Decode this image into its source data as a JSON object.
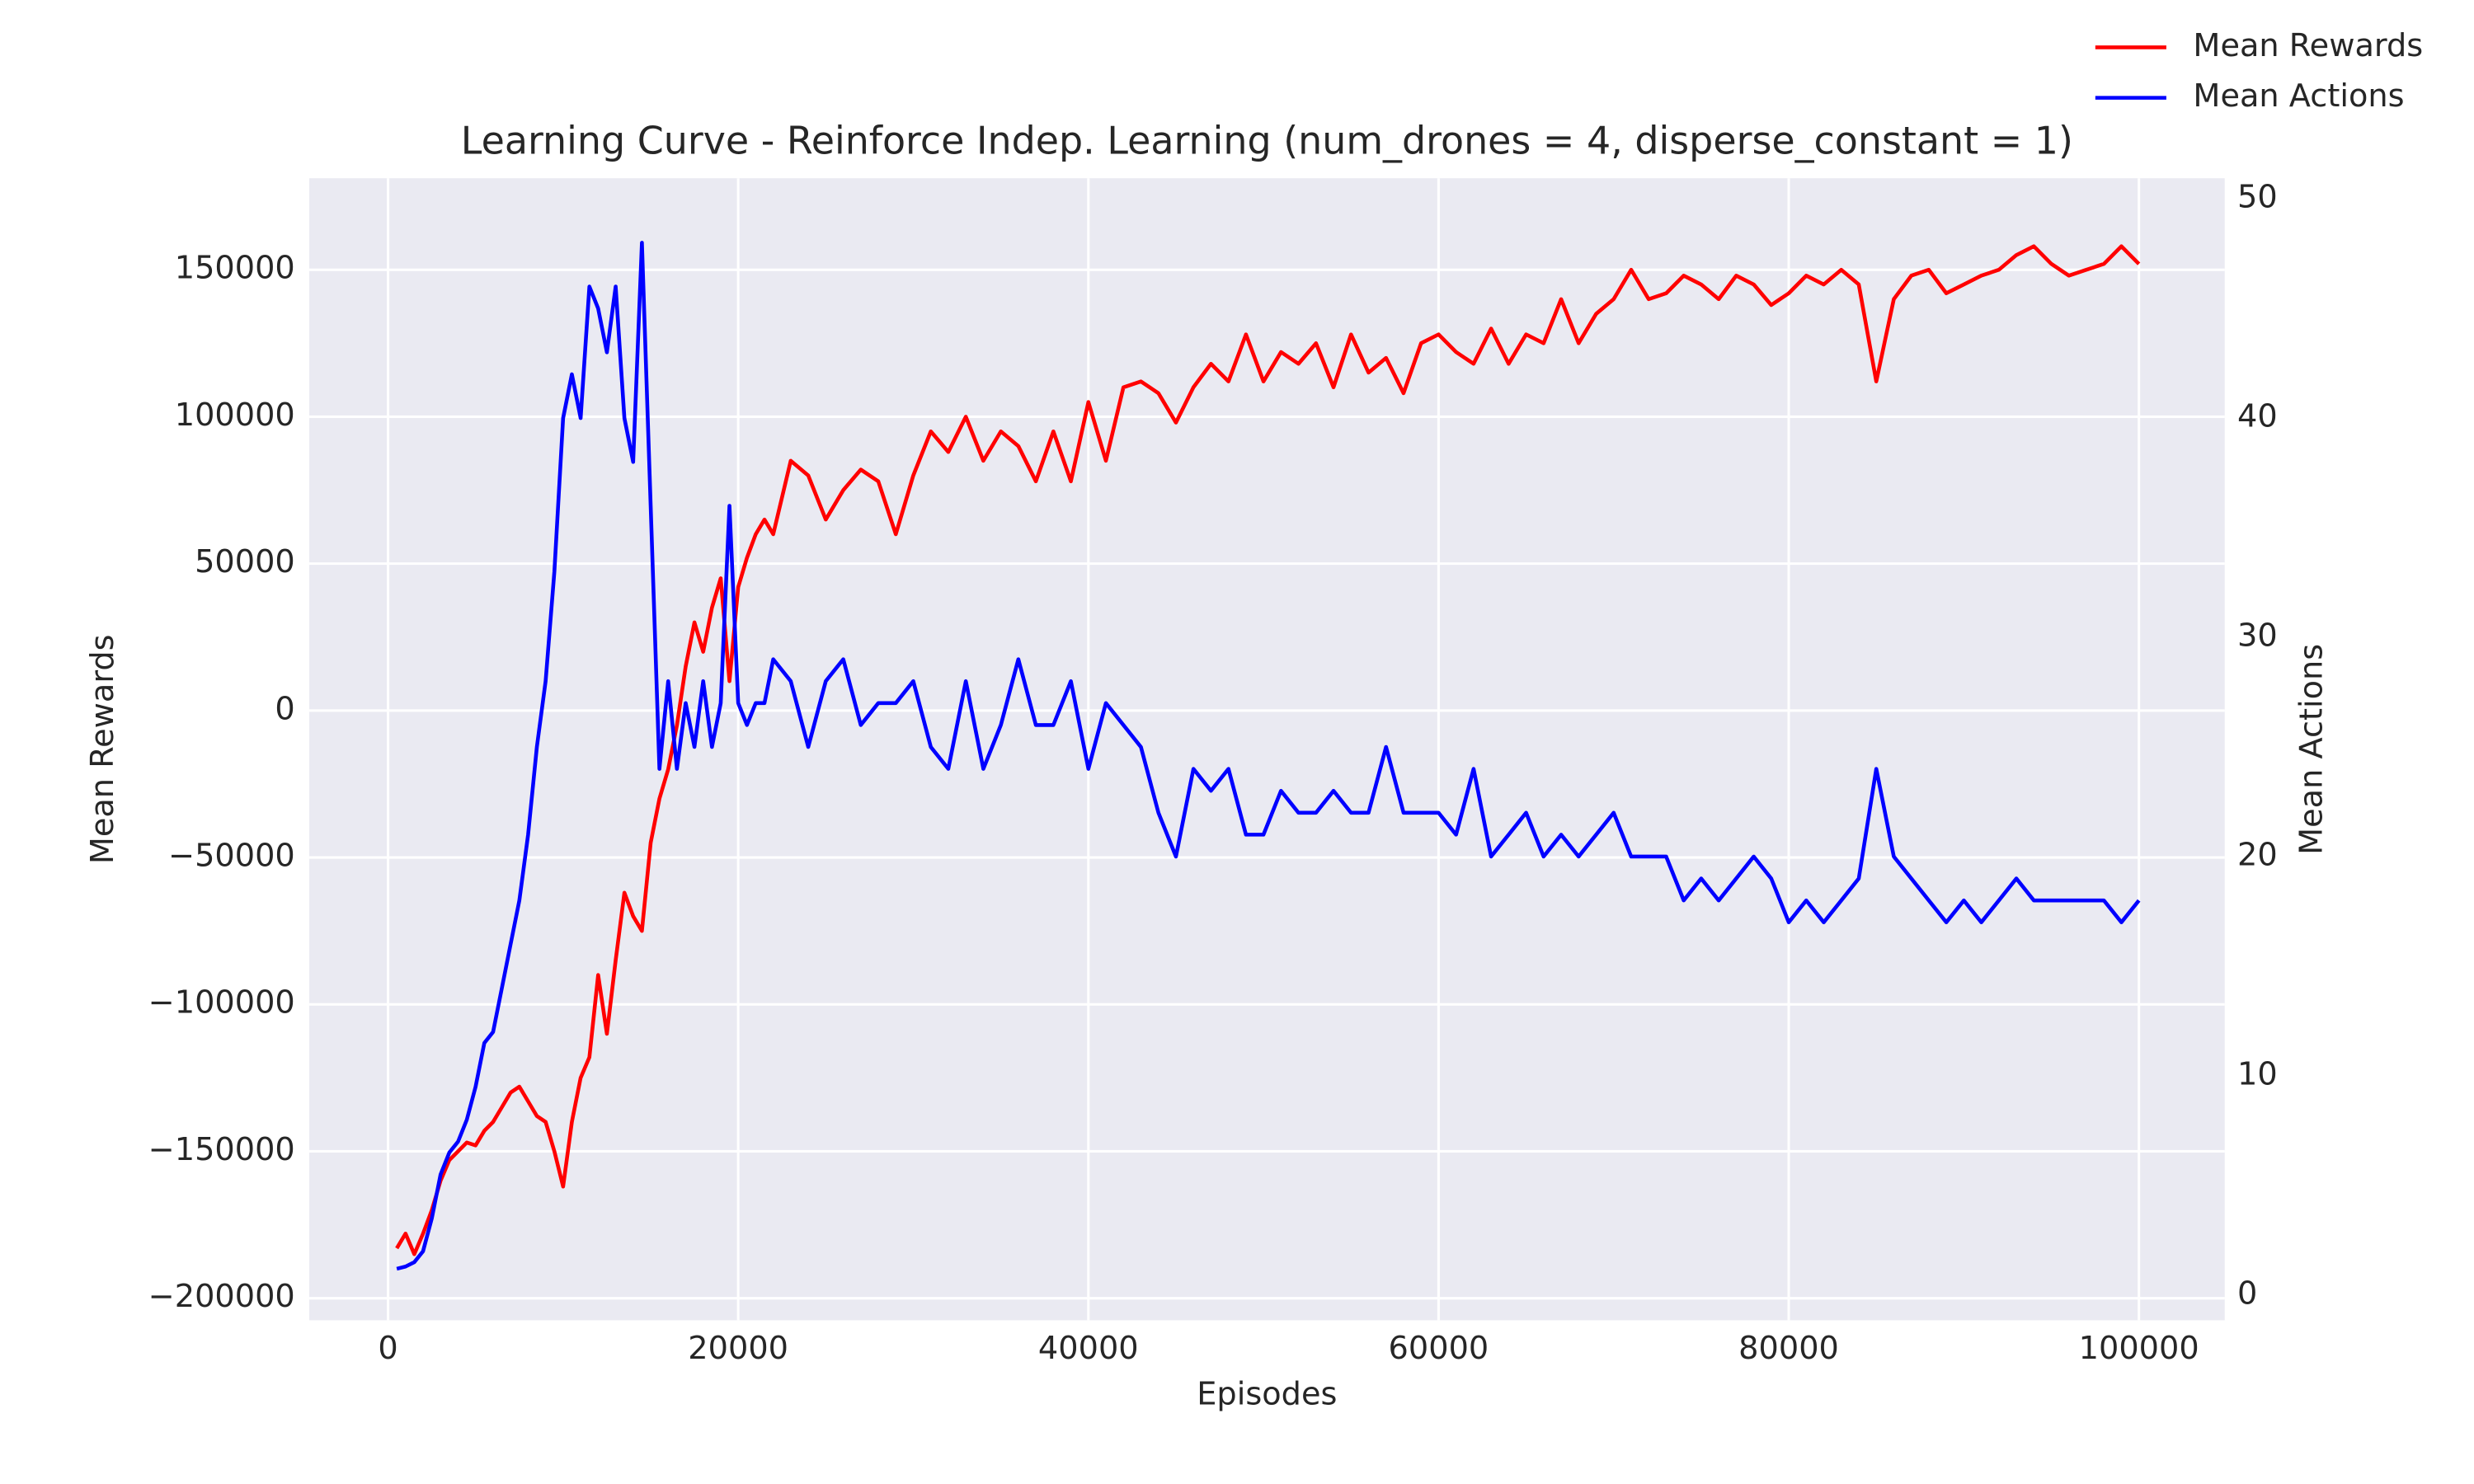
{
  "chart_data": {
    "type": "line",
    "title": "Learning Curve - Reinforce Indep. Learning (num_drones = 4, disperse_constant = 1)",
    "x_label": "Episodes",
    "y_label": "Mean Rewards",
    "y2_label": "Mean Actions",
    "x": [
      500,
      1000,
      1500,
      2000,
      2500,
      3000,
      3500,
      4000,
      4500,
      5000,
      5500,
      6000,
      6500,
      7000,
      7500,
      8000,
      8500,
      9000,
      9500,
      10000,
      10500,
      11000,
      11500,
      12000,
      12500,
      13000,
      13500,
      14000,
      14500,
      15000,
      15500,
      16000,
      16500,
      17000,
      17500,
      18000,
      18500,
      19000,
      19500,
      20000,
      20500,
      21000,
      21500,
      22000,
      23000,
      24000,
      25000,
      26000,
      27000,
      28000,
      29000,
      30000,
      31000,
      32000,
      33000,
      34000,
      35000,
      36000,
      37000,
      38000,
      39000,
      40000,
      41000,
      42000,
      43000,
      44000,
      45000,
      46000,
      47000,
      48000,
      49000,
      50000,
      51000,
      52000,
      53000,
      54000,
      55000,
      56000,
      57000,
      58000,
      59000,
      60000,
      61000,
      62000,
      63000,
      64000,
      65000,
      66000,
      67000,
      68000,
      69000,
      70000,
      71000,
      72000,
      73000,
      74000,
      75000,
      76000,
      77000,
      78000,
      79000,
      80000,
      81000,
      82000,
      83000,
      84000,
      85000,
      86000,
      87000,
      88000,
      89000,
      90000,
      91000,
      92000,
      93000,
      94000,
      95000,
      96000,
      97000,
      98000,
      99000,
      100000
    ],
    "series": [
      {
        "name": "Mean Rewards",
        "color": "#ff0000",
        "values": [
          -183000,
          -178000,
          -185000,
          -178000,
          -170000,
          -160000,
          -153000,
          -150000,
          -147000,
          -148000,
          -143000,
          -140000,
          -135000,
          -130000,
          -128000,
          -133000,
          -138000,
          -140000,
          -150000,
          -162000,
          -140000,
          -125000,
          -118000,
          -90000,
          -110000,
          -85000,
          -62000,
          -70000,
          -75000,
          -45000,
          -30000,
          -20000,
          -5000,
          15000,
          30000,
          20000,
          35000,
          45000,
          10000,
          42000,
          52000,
          60000,
          65000,
          60000,
          85000,
          80000,
          65000,
          75000,
          82000,
          78000,
          60000,
          80000,
          95000,
          88000,
          100000,
          85000,
          95000,
          90000,
          78000,
          95000,
          78000,
          105000,
          85000,
          110000,
          112000,
          108000,
          98000,
          110000,
          118000,
          112000,
          128000,
          112000,
          122000,
          118000,
          125000,
          110000,
          128000,
          115000,
          120000,
          108000,
          125000,
          128000,
          122000,
          118000,
          130000,
          118000,
          128000,
          125000,
          140000,
          125000,
          135000,
          140000,
          150000,
          140000,
          142000,
          148000,
          145000,
          140000,
          148000,
          145000,
          138000,
          142000,
          148000,
          145000,
          150000,
          145000,
          112000,
          140000,
          148000,
          150000,
          142000,
          145000,
          148000,
          150000,
          155000,
          158000,
          152000,
          148000,
          150000,
          152000,
          158000,
          152000
        ]
      },
      {
        "name": "Mean Actions",
        "color": "#0000ff",
        "axis": "y2",
        "values": [
          1.2,
          1.3,
          1.5,
          2,
          3.5,
          5.5,
          6.5,
          7,
          8,
          9.5,
          11.5,
          12,
          14,
          16,
          18,
          21,
          25,
          28,
          33,
          40,
          42,
          40,
          46,
          45,
          43,
          46,
          40,
          38,
          48,
          36,
          24,
          28,
          24,
          27,
          25,
          28,
          25,
          27,
          36,
          27,
          26,
          27,
          27,
          29,
          28,
          25,
          28,
          29,
          26,
          27,
          27,
          28,
          25,
          24,
          28,
          24,
          26,
          29,
          26,
          26,
          28,
          24,
          27,
          26,
          25,
          22,
          20,
          24,
          23,
          24,
          21,
          21,
          23,
          22,
          22,
          23,
          22,
          22,
          25,
          22,
          22,
          22,
          21,
          24,
          20,
          21,
          22,
          20,
          21,
          20,
          21,
          22,
          20,
          20,
          20,
          18,
          19,
          18,
          19,
          20,
          19,
          17,
          18,
          17,
          18,
          19,
          24,
          20,
          19,
          18,
          17,
          18,
          17,
          18,
          19,
          18,
          18,
          18,
          18,
          18,
          17,
          18
        ]
      }
    ],
    "xlim": [
      -4500,
      104900
    ],
    "xticks": [
      0,
      20000,
      40000,
      60000,
      80000,
      100000
    ],
    "ylim": [
      -207500,
      181150
    ],
    "yticks": [
      {
        "value": -200000,
        "label": "−200000"
      },
      {
        "value": -150000,
        "label": "−150000"
      },
      {
        "value": -100000,
        "label": "−100000"
      },
      {
        "value": -50000,
        "label": "−50000"
      },
      0,
      50000,
      100000,
      150000
    ],
    "y2lim": [
      -1.15,
      50.94
    ],
    "y2ticks": [
      0,
      10,
      20,
      30,
      40,
      50
    ],
    "grid": true,
    "legend": "upper right"
  }
}
